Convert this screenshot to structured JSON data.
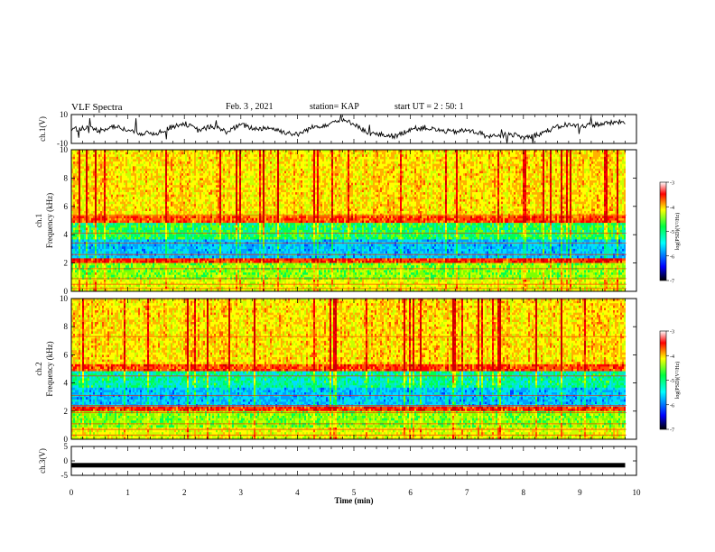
{
  "header": {
    "title": "VLF Spectra",
    "date": "Feb. 3 , 2021",
    "station": "station= KAP",
    "start": "start UT = 2 : 50: 1"
  },
  "chart_data": [
    {
      "type": "line",
      "panel": "ch1-waveform",
      "ylabel": "ch.1(V)",
      "ylim": [
        -10,
        10
      ],
      "yticks": [
        10,
        -10
      ],
      "xlim": [
        0,
        10
      ],
      "x": [
        0,
        0.25,
        0.5,
        0.75,
        1.0,
        1.25,
        1.5,
        1.75,
        2.0,
        2.25,
        2.5,
        2.75,
        3.0,
        3.25,
        3.5,
        3.75,
        4.0,
        4.25,
        4.5,
        4.75,
        5.0,
        5.25,
        5.5,
        5.75,
        6.0,
        6.25,
        6.5,
        6.75,
        7.0,
        7.25,
        7.5,
        7.75,
        8.0,
        8.25,
        8.5,
        8.75,
        9.0,
        9.25,
        9.5,
        9.75,
        9.8
      ],
      "values": [
        0,
        1,
        -1,
        2,
        -1,
        -3,
        -3,
        1,
        4,
        -1,
        2,
        -2,
        3,
        0,
        1,
        -2,
        -4,
        1,
        3,
        6,
        4,
        -3,
        -4,
        -5,
        0,
        1,
        -1,
        -2,
        -1,
        -3,
        -6,
        -3,
        -6,
        -4,
        0,
        3,
        2,
        3,
        4,
        5,
        4
      ]
    },
    {
      "type": "heatmap",
      "panel": "ch1-spectrogram",
      "ylabel": "ch.1 Frequency (kHz)",
      "ylim": [
        0,
        10
      ],
      "yticks": [
        0,
        2,
        4,
        6,
        8,
        10
      ],
      "xlim": [
        0,
        10
      ],
      "colorbar": {
        "label": "log(PSD)(V²/Hz)",
        "range": [
          -7,
          -3
        ],
        "ticks": [
          -3,
          -4,
          -5,
          -6,
          -7
        ]
      }
    },
    {
      "type": "heatmap",
      "panel": "ch2-spectrogram",
      "ylabel": "ch.2 Frequency (kHz)",
      "ylim": [
        0,
        10
      ],
      "yticks": [
        0,
        2,
        4,
        6,
        8,
        10
      ],
      "xlim": [
        0,
        10
      ],
      "colorbar": {
        "label": "log(PSD)(V²/Hz)",
        "range": [
          -7,
          -3
        ],
        "ticks": [
          -3,
          -4,
          -5,
          -6,
          -7
        ]
      }
    },
    {
      "type": "line",
      "panel": "ch3-waveform",
      "ylabel": "ch.3(V)",
      "ylim": [
        -5,
        5
      ],
      "yticks": [
        5,
        0,
        -5
      ],
      "xlim": [
        0,
        10
      ],
      "x": [
        0,
        9.8
      ],
      "values": [
        -1.5,
        -1.5
      ],
      "xlabel": "Time (min)",
      "xticks": [
        0,
        1,
        2,
        3,
        4,
        5,
        6,
        7,
        8,
        9,
        10
      ]
    }
  ]
}
